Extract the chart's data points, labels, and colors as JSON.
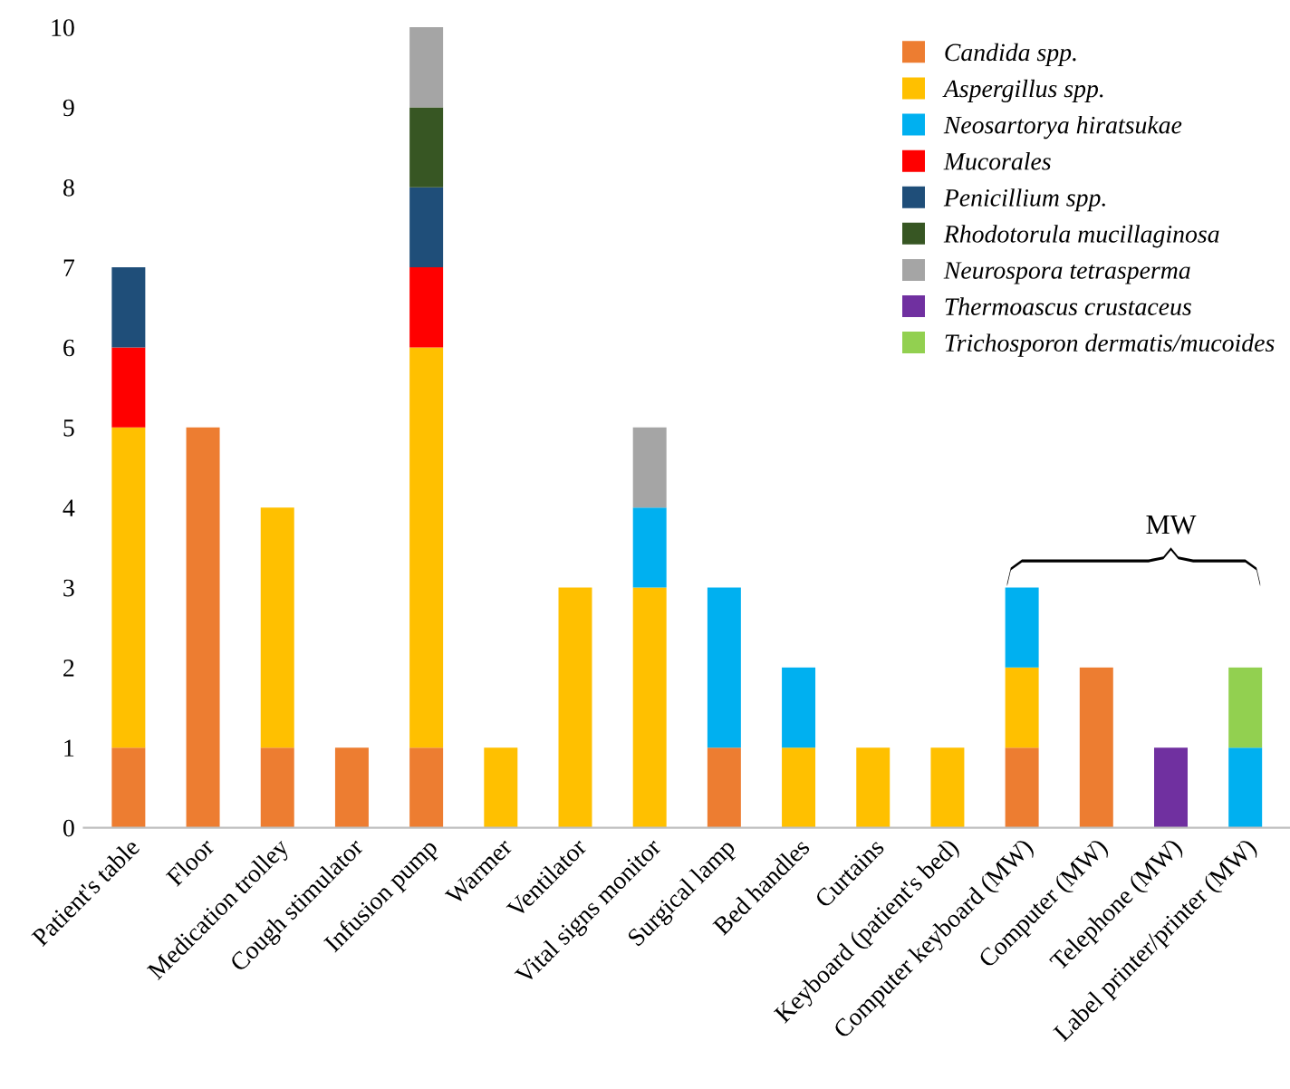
{
  "chart_data": {
    "type": "bar",
    "stacked": true,
    "categories": [
      "Patient's table",
      "Floor",
      "Medication trolley",
      "Cough stimulator",
      "Infusion pump",
      "Warmer",
      "Ventilator",
      "Vital signs monitor",
      "Surgical lamp",
      "Bed handles",
      "Curtains",
      "Keyboard (patient's bed)",
      "Computer keyboard (MW)",
      "Computer (MW)",
      "Telephone (MW)",
      "Label printer/printer (MW)"
    ],
    "series": [
      {
        "name": "Candida spp.",
        "color": "#ed7d31",
        "values": [
          1,
          5,
          1,
          1,
          1,
          null,
          null,
          null,
          1,
          null,
          null,
          null,
          1,
          2,
          null,
          null
        ]
      },
      {
        "name": "Aspergillus spp.",
        "color": "#ffc000",
        "values": [
          4,
          null,
          3,
          null,
          5,
          1,
          3,
          3,
          null,
          1,
          1,
          1,
          1,
          null,
          null,
          null
        ]
      },
      {
        "name": "Neosartorya hiratsukae",
        "color": "#00b0f0",
        "values": [
          null,
          null,
          null,
          null,
          null,
          null,
          null,
          1,
          2,
          1,
          null,
          null,
          1,
          null,
          null,
          1
        ]
      },
      {
        "name": "Mucorales",
        "color": "#ff0000",
        "values": [
          1,
          null,
          null,
          null,
          1,
          null,
          null,
          null,
          null,
          null,
          null,
          null,
          null,
          null,
          null,
          null
        ]
      },
      {
        "name": "Penicillium spp.",
        "color": "#1f4e79",
        "values": [
          1,
          null,
          null,
          null,
          1,
          null,
          null,
          null,
          null,
          null,
          null,
          null,
          null,
          null,
          null,
          null
        ]
      },
      {
        "name": "Rhodotorula mucillaginosa",
        "color": "#375623",
        "values": [
          null,
          null,
          null,
          null,
          1,
          null,
          null,
          null,
          null,
          null,
          null,
          null,
          null,
          null,
          null,
          null
        ]
      },
      {
        "name": "Neurospora tetrasperma",
        "color": "#a5a5a5",
        "values": [
          null,
          null,
          null,
          null,
          1,
          null,
          null,
          1,
          null,
          null,
          null,
          null,
          null,
          null,
          null,
          null
        ]
      },
      {
        "name": "Thermoascus crustaceus",
        "color": "#7030a0",
        "values": [
          null,
          null,
          null,
          null,
          null,
          null,
          null,
          null,
          null,
          null,
          null,
          null,
          null,
          null,
          1,
          null
        ]
      },
      {
        "name": "Trichosporon dermatis/mucoides",
        "color": "#92d050",
        "values": [
          null,
          null,
          null,
          null,
          null,
          null,
          null,
          null,
          null,
          null,
          null,
          null,
          null,
          null,
          null,
          1
        ]
      }
    ],
    "ylim": [
      0,
      10
    ],
    "yticks": [
      0,
      1,
      2,
      3,
      4,
      5,
      6,
      7,
      8,
      9,
      10
    ],
    "grid": false,
    "legend": "top right",
    "annotations": [
      "MW"
    ]
  }
}
